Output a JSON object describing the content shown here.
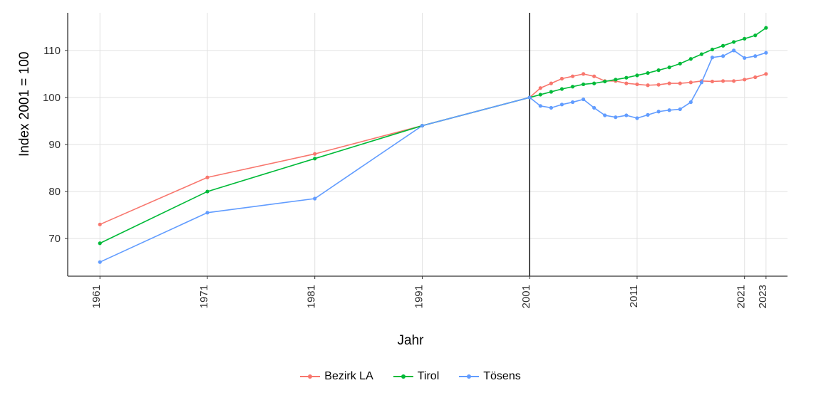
{
  "chart": {
    "type": "line",
    "xlabel": "Jahr",
    "ylabel": "Index 2001 = 100",
    "label_fontsize": 19,
    "panel_background": "#ffffff",
    "grid_color": "#e2e2e2",
    "axis_line_color": "#333333",
    "tick_fontsize": 15,
    "xtick_rotation": -90,
    "vline_x": 2001,
    "vline_color": "#000000",
    "xlim": [
      1958,
      2025
    ],
    "ylim": [
      62,
      118
    ],
    "yticks": [
      70,
      80,
      90,
      100,
      110
    ],
    "xticks": [
      1961,
      1971,
      1981,
      1991,
      2001,
      2011,
      2021,
      2023
    ],
    "marker_radius": 2.6,
    "line_width": 1.6,
    "years": [
      1961,
      1971,
      1981,
      1991,
      2001,
      2002,
      2003,
      2004,
      2005,
      2006,
      2007,
      2008,
      2009,
      2010,
      2011,
      2012,
      2013,
      2014,
      2015,
      2016,
      2017,
      2018,
      2019,
      2020,
      2021,
      2022,
      2023
    ],
    "series": [
      {
        "key": "bezirk",
        "label": "Bezirk LA",
        "color": "#f8766d",
        "values": [
          73,
          83,
          88,
          94,
          100,
          102,
          103,
          104,
          104.5,
          105,
          104.5,
          103.5,
          103.5,
          103,
          102.8,
          102.6,
          102.7,
          103,
          103,
          103.2,
          103.5,
          103.4,
          103.5,
          103.5,
          103.8,
          104.3,
          105
        ]
      },
      {
        "key": "tirol",
        "label": "Tirol",
        "color": "#00ba38",
        "values": [
          69,
          80,
          87,
          94,
          100,
          100.6,
          101.2,
          101.8,
          102.3,
          102.8,
          103,
          103.4,
          103.8,
          104.2,
          104.7,
          105.2,
          105.8,
          106.4,
          107.2,
          108.2,
          109.2,
          110.2,
          111,
          111.8,
          112.5,
          113.2,
          114.8
        ]
      },
      {
        "key": "toesens",
        "label": "Tösens",
        "color": "#619cff",
        "values": [
          65,
          75.5,
          78.5,
          94,
          100,
          98.2,
          97.8,
          98.5,
          99,
          99.6,
          97.8,
          96.2,
          95.8,
          96.2,
          95.6,
          96.3,
          97,
          97.3,
          97.5,
          99,
          103.2,
          108.5,
          108.8,
          110,
          108.4,
          108.8,
          109.5
        ]
      }
    ],
    "legend": {
      "position": "bottom",
      "items_order": [
        "bezirk",
        "tirol",
        "toesens"
      ]
    }
  }
}
